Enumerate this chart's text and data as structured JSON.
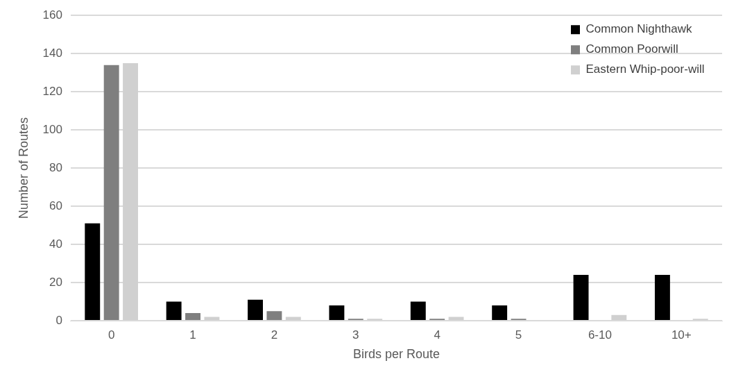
{
  "chart_data": {
    "type": "bar",
    "xlabel": "Birds per Route",
    "ylabel": "Number of Routes",
    "categories": [
      "0",
      "1",
      "2",
      "3",
      "4",
      "5",
      "6-10",
      "10+"
    ],
    "series": [
      {
        "name": "Common Nighthawk",
        "color": "#000000",
        "values": [
          51,
          10,
          11,
          8,
          10,
          8,
          24,
          24
        ]
      },
      {
        "name": "Common Poorwill",
        "color": "#7f7f7f",
        "values": [
          134,
          4,
          5,
          1,
          1,
          1,
          0,
          0
        ]
      },
      {
        "name": "Eastern Whip-poor-will",
        "color": "#d0d0d0",
        "values": [
          135,
          2,
          2,
          1,
          2,
          0,
          3,
          1
        ]
      }
    ],
    "ylim": [
      0,
      160
    ],
    "yticks": [
      0,
      20,
      40,
      60,
      80,
      100,
      120,
      140,
      160
    ],
    "grid": "y",
    "legend": "top right"
  }
}
